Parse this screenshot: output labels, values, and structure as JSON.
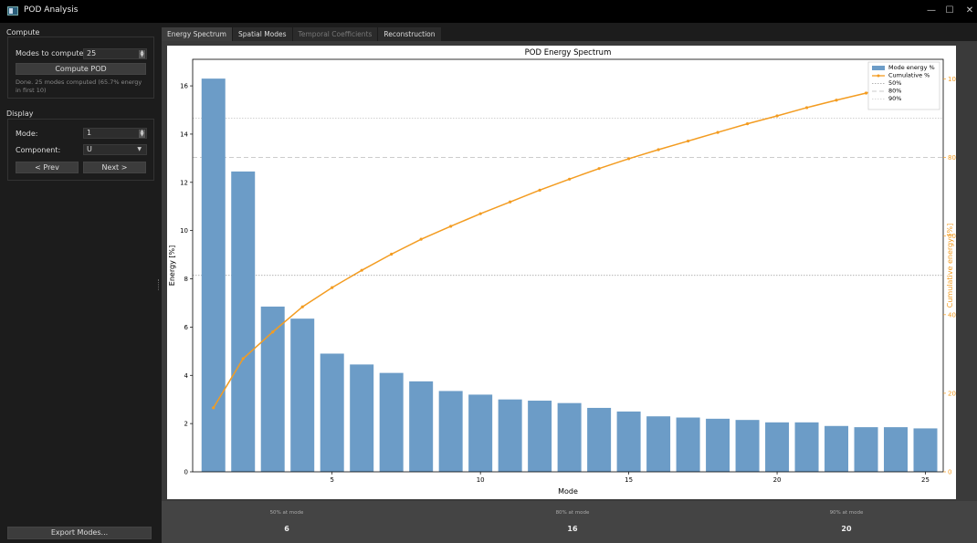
{
  "window": {
    "title": "POD Analysis",
    "controls": {
      "minimize": "—",
      "maximize": "☐",
      "close": "✕"
    }
  },
  "sidebar": {
    "compute": {
      "section_title": "Compute",
      "modes_label": "Modes to compute:",
      "modes_value": "25",
      "compute_button": "Compute POD",
      "status": "Done. 25 modes computed (65.7% energy in first 10)"
    },
    "display": {
      "section_title": "Display",
      "mode_label": "Mode:",
      "mode_value": "1",
      "component_label": "Component:",
      "component_value": "U",
      "prev_button": "< Prev",
      "next_button": "Next >"
    },
    "export_button": "Export Modes..."
  },
  "tabs": [
    {
      "label": "Energy Spectrum",
      "state": "active"
    },
    {
      "label": "Spatial Modes",
      "state": "normal"
    },
    {
      "label": "Temporal Coefficients",
      "state": "disabled"
    },
    {
      "label": "Reconstruction",
      "state": "normal"
    }
  ],
  "stats": [
    {
      "label": "50% at mode",
      "value": "6"
    },
    {
      "label": "80% at mode",
      "value": "16"
    },
    {
      "label": "90% at mode",
      "value": "20"
    }
  ],
  "chart_data": {
    "type": "bar",
    "title": "POD Energy Spectrum",
    "xlabel": "Mode",
    "ylabel": "Energy  [%]",
    "y2label": "Cumulative energy  [%]",
    "x": [
      1,
      2,
      3,
      4,
      5,
      6,
      7,
      8,
      9,
      10,
      11,
      12,
      13,
      14,
      15,
      16,
      17,
      18,
      19,
      20,
      21,
      22,
      23,
      24,
      25
    ],
    "xlim": [
      0.3,
      25.6
    ],
    "ylim": [
      0,
      17.1
    ],
    "y2lim": [
      0,
      105
    ],
    "xticks": [
      5,
      10,
      15,
      20,
      25
    ],
    "yticks": [
      0,
      2,
      4,
      6,
      8,
      10,
      12,
      14,
      16
    ],
    "y2ticks": [
      0,
      20,
      40,
      60,
      80,
      100
    ],
    "series": [
      {
        "name": "Mode energy %",
        "kind": "bar",
        "axis": "left",
        "color": "#6c9cc7",
        "values": [
          16.3,
          12.45,
          6.85,
          6.35,
          4.9,
          4.45,
          4.1,
          3.75,
          3.35,
          3.2,
          3.0,
          2.95,
          2.85,
          2.65,
          2.5,
          2.3,
          2.25,
          2.2,
          2.15,
          2.05,
          2.05,
          1.9,
          1.85,
          1.85,
          1.8
        ]
      },
      {
        "name": "Cumulative %",
        "kind": "line",
        "axis": "right",
        "color": "#f39c21",
        "values": [
          16.3,
          28.8,
          35.6,
          42.0,
          46.9,
          51.3,
          55.4,
          59.2,
          62.5,
          65.7,
          68.7,
          71.7,
          74.5,
          77.2,
          79.7,
          82.0,
          84.2,
          86.4,
          88.6,
          90.6,
          92.7,
          94.6,
          96.4,
          98.3,
          100.0
        ]
      }
    ],
    "reference_lines": [
      {
        "name": "50%",
        "value": 50,
        "axis": "right",
        "color": "#9a9a9a",
        "style": "dotted"
      },
      {
        "name": "80%",
        "value": 80,
        "axis": "right",
        "color": "#bbbbbb",
        "style": "dashed"
      },
      {
        "name": "90%",
        "value": 90,
        "axis": "right",
        "color": "#cccccc",
        "style": "dotted"
      }
    ],
    "legend_position": "top-right",
    "grid": false
  }
}
